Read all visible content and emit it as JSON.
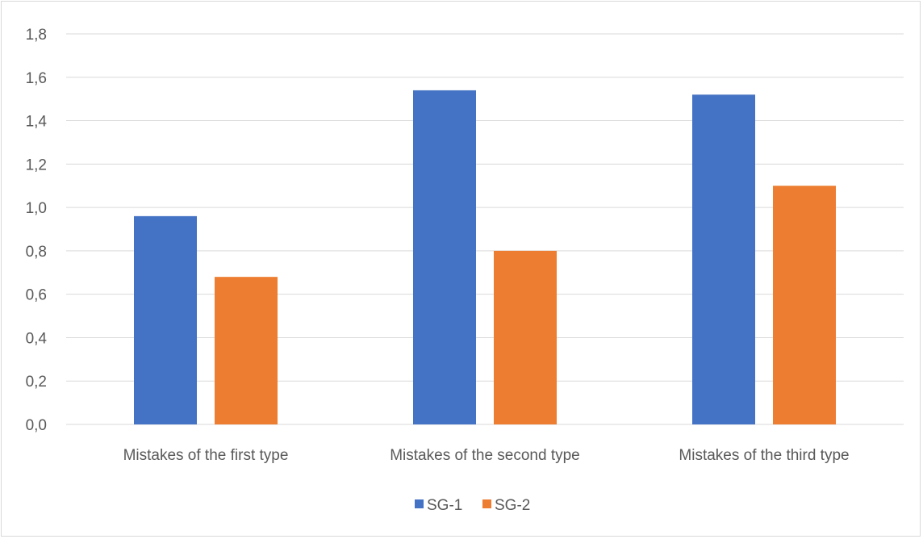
{
  "chart_data": {
    "type": "bar",
    "title": "",
    "xlabel": "",
    "ylabel": "",
    "categories": [
      "Mistakes of the first type",
      "Mistakes of the second type",
      "Mistakes of the third type"
    ],
    "series": [
      {
        "name": "SG-1",
        "values": [
          0.96,
          1.54,
          1.52
        ],
        "color": "#4472c4"
      },
      {
        "name": "SG-2",
        "values": [
          0.68,
          0.8,
          1.1
        ],
        "color": "#ed7d31"
      }
    ],
    "ylim": [
      0,
      1.8
    ],
    "yticks": [
      "0,0",
      "0,2",
      "0,4",
      "0,6",
      "0,8",
      "1,0",
      "1,2",
      "1,4",
      "1,6",
      "1,8"
    ],
    "grid": true,
    "legend_position": "bottom"
  }
}
